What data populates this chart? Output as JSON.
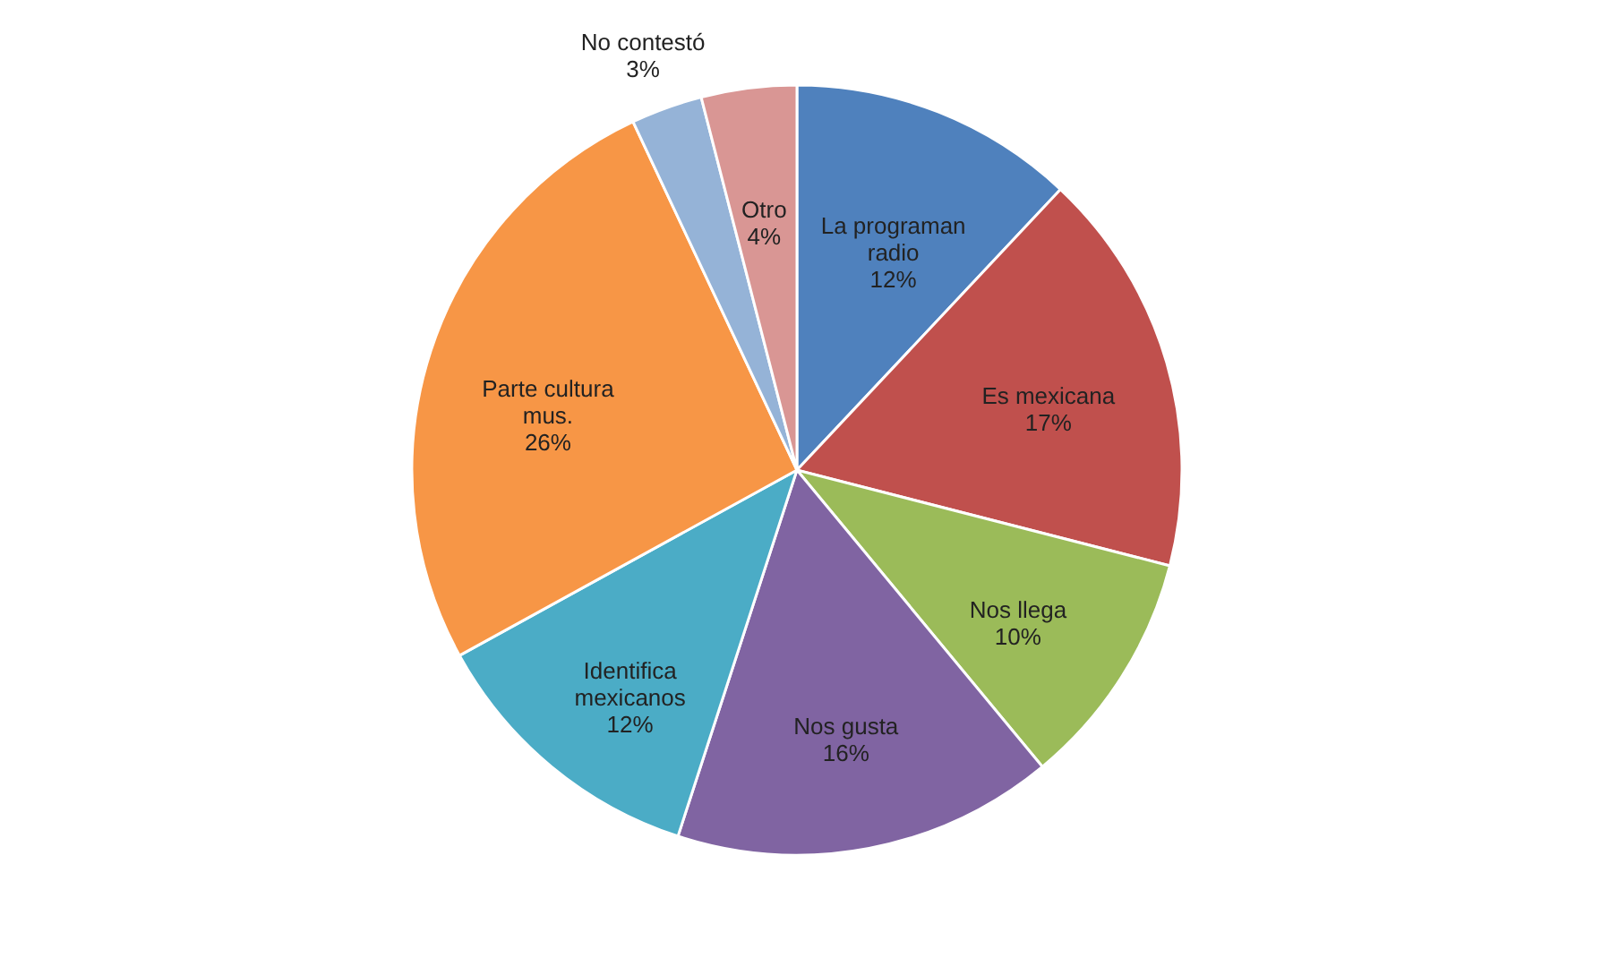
{
  "chart_data": {
    "type": "pie",
    "categories": [
      "La programan radio",
      "Es mexicana",
      "Nos llega",
      "Nos gusta",
      "Identifica mexicanos",
      "Parte cultura mus.",
      "No contestó",
      "Otro"
    ],
    "values": [
      12,
      17,
      10,
      16,
      12,
      26,
      3,
      4
    ],
    "value_labels": [
      "12%",
      "17%",
      "10%",
      "16%",
      "12%",
      "26%",
      "3%",
      "4%"
    ],
    "colors": [
      "#4f81bd",
      "#c0504d",
      "#9bbb59",
      "#8064a2",
      "#4bacc6",
      "#f79646",
      "#95b3d7",
      "#d99694"
    ],
    "legend": false
  }
}
